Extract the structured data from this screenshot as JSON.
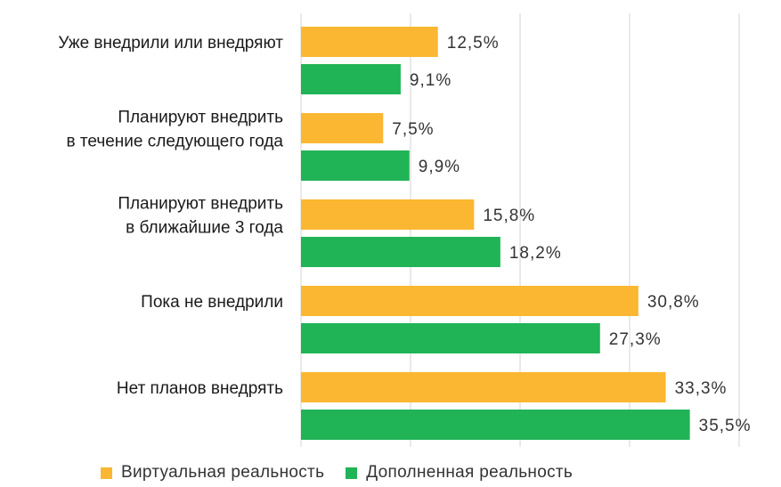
{
  "chart_data": {
    "type": "bar",
    "orientation": "horizontal",
    "categories": [
      [
        "Уже внедрили или внедряют"
      ],
      [
        "Планируют внедрить",
        "в течение следующего года"
      ],
      [
        "Планируют внедрить",
        "в ближайшие 3 года"
      ],
      [
        "Пока не внедрили"
      ],
      [
        "Нет планов внедрять"
      ]
    ],
    "series": [
      {
        "name": "Виртуальная реальность",
        "color": "#FBB731",
        "values": [
          12.5,
          7.5,
          15.8,
          30.8,
          33.3
        ],
        "labels": [
          "12,5%",
          "7,5%",
          "15,8%",
          "30,8%",
          "33,3%"
        ]
      },
      {
        "name": "Дополненная реальность",
        "color": "#20B457",
        "values": [
          9.1,
          9.9,
          18.2,
          27.3,
          35.5
        ],
        "labels": [
          "9,1%",
          "9,9%",
          "18,2%",
          "27,3%",
          "35,5%"
        ]
      }
    ],
    "xlim": [
      0,
      40
    ],
    "grid": true,
    "legend_position": "bottom"
  }
}
